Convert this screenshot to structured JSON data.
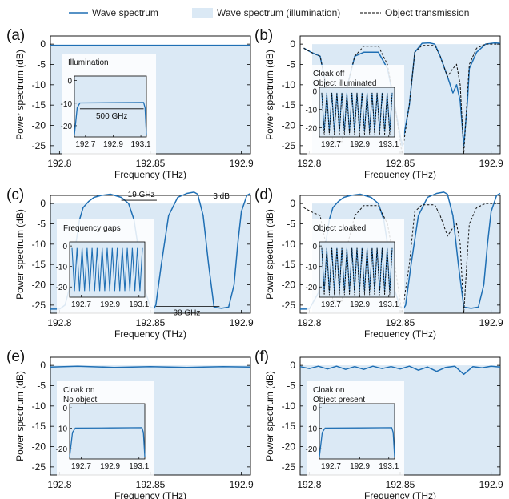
{
  "legend": {
    "items": [
      {
        "label": "Wave spectrum",
        "style": "solid-line",
        "color": "#1f6fb4"
      },
      {
        "label": "Wave spectrum (illumination)",
        "style": "filled-box",
        "color": "#dbe9f5"
      },
      {
        "label": "Object transmission",
        "style": "dashed-line",
        "color": "#000000"
      }
    ]
  },
  "colors": {
    "wave": "#1f6fb4",
    "illumination": "#dbe9f5",
    "object": "#111111"
  },
  "chart_data": [
    {
      "panel": "(a)",
      "type": "line",
      "xlabel": "Frequency (THz)",
      "ylabel": "Power spectrum (dB)",
      "xlim": [
        192.795,
        192.905
      ],
      "ylim": [
        -27,
        2
      ],
      "xticks": [
        "192.8",
        "192.85",
        "192.9"
      ],
      "yticks": [
        0,
        -5,
        -10,
        -15,
        -20,
        -25
      ],
      "illumination_band": [
        192.795,
        192.905
      ],
      "series": [
        {
          "name": "Wave spectrum",
          "x": [
            192.795,
            192.905
          ],
          "y": [
            -0.3,
            -0.3
          ]
        }
      ],
      "annotations": [],
      "inset": {
        "title": "Illumination",
        "annotations": [
          "500 GHz"
        ],
        "xticks": [
          "192.7",
          "192.9",
          "193.1"
        ],
        "yticks": [
          0,
          -10,
          -20
        ],
        "series": {
          "x": [
            192.62,
            192.64,
            192.66,
            192.9,
            193.12,
            193.13,
            193.14
          ],
          "y": [
            -24,
            -12,
            -9.9,
            -9.8,
            -9.7,
            -12,
            -24
          ]
        }
      }
    },
    {
      "panel": "(b)",
      "type": "line",
      "xlabel": "Frequency (THz)",
      "ylabel": "Power spectrum (dB)",
      "xlim": [
        192.795,
        192.905
      ],
      "ylim": [
        -27,
        2
      ],
      "xticks": [
        "192.8",
        "192.85",
        "192.9"
      ],
      "yticks": [
        0,
        -5,
        -10,
        -15,
        -20,
        -25
      ],
      "illumination_band": [
        192.795,
        192.905
      ],
      "series": [
        {
          "name": "Wave spectrum",
          "x": [
            192.797,
            192.801,
            192.806,
            192.81,
            192.813,
            192.818,
            192.82,
            192.825,
            192.83,
            192.838,
            192.843,
            192.847,
            192.851,
            192.855,
            192.858,
            192.862,
            192.866,
            192.869,
            192.872,
            192.876,
            192.879,
            192.881,
            192.883,
            192.885,
            192.887,
            192.888,
            192.892,
            192.897,
            192.902,
            192.905
          ],
          "y": [
            -1,
            -2,
            -3,
            -12,
            -20,
            -20,
            -12,
            -3,
            -2,
            -2,
            -6,
            -15,
            -25,
            -15,
            -2,
            0.2,
            0.3,
            0,
            -3,
            -8,
            -12,
            -10,
            -14,
            -25,
            -14,
            -6,
            -2,
            0,
            0.3,
            0.2
          ]
        },
        {
          "name": "Object transmission",
          "x": [
            192.797,
            192.801,
            192.806,
            192.81,
            192.813,
            192.818,
            192.82,
            192.825,
            192.83,
            192.838,
            192.843,
            192.847,
            192.851,
            192.855,
            192.858,
            192.862,
            192.866,
            192.869,
            192.872,
            192.876,
            192.879,
            192.881,
            192.883,
            192.885,
            192.887,
            192.888,
            192.892,
            192.897,
            192.902,
            192.905
          ],
          "y": [
            -1,
            -2,
            -3,
            -12,
            -24,
            -24,
            -12,
            -3,
            -0.5,
            -0.5,
            -5,
            -15,
            -27,
            -15,
            -2,
            -0.3,
            -0.3,
            -0.3,
            -3,
            -8,
            -6,
            -5,
            -10,
            -27,
            -12,
            -5,
            -1,
            0,
            0,
            0
          ]
        }
      ],
      "annotations": [],
      "inset": {
        "title": "Cloak off",
        "subtitle": "Object illuminated",
        "annotations": [],
        "xticks": [
          "192.7",
          "192.9",
          "193.1"
        ],
        "yticks": [
          0,
          -10,
          -20
        ],
        "series": {
          "comb": true
        }
      }
    },
    {
      "panel": "(c)",
      "type": "line",
      "xlabel": "Frequency (THz)",
      "ylabel": "Power spectrum (dB)",
      "xlim": [
        192.795,
        192.905
      ],
      "ylim": [
        -27,
        2
      ],
      "xticks": [
        "192.8",
        "192.85",
        "192.9"
      ],
      "yticks": [
        0,
        -5,
        -10,
        -15,
        -20,
        -25
      ],
      "illumination_band": [
        192.795,
        192.905
      ],
      "series": [
        {
          "name": "Wave spectrum",
          "x": [
            192.795,
            192.8,
            192.803,
            192.806,
            192.809,
            192.811,
            192.813,
            192.816,
            192.819,
            192.823,
            192.828,
            192.834,
            192.838,
            192.841,
            192.843,
            192.846,
            192.85,
            192.852,
            192.853,
            192.856,
            192.86,
            192.865,
            192.87,
            192.874,
            192.876,
            192.879,
            192.882,
            192.885,
            192.889,
            192.893,
            192.896,
            192.898,
            192.9,
            192.903,
            192.905
          ],
          "y": [
            -26,
            -26,
            -25,
            -20,
            -10,
            -4,
            -1,
            0.5,
            1.5,
            2,
            2.3,
            1.5,
            0,
            -4,
            -10,
            -20,
            -25.5,
            -25.8,
            -25,
            -15,
            -3,
            1.5,
            2.5,
            2.8,
            2.3,
            -3,
            -15,
            -25.5,
            -25.8,
            -25.5,
            -20,
            -10,
            -2,
            2,
            2.5
          ]
        }
      ],
      "annotations": [
        "19 GHz",
        "38 GHz",
        "3 dB"
      ],
      "inset": {
        "title": "Frequency gaps",
        "annotations": [],
        "xticks": [
          "192.7",
          "192.9",
          "193.1"
        ],
        "yticks": [
          0,
          -10,
          -20
        ],
        "series": {
          "comb": true
        }
      }
    },
    {
      "panel": "(d)",
      "type": "line",
      "xlabel": "Frequency (THz)",
      "ylabel": "Power spectrum (dB)",
      "xlim": [
        192.795,
        192.905
      ],
      "ylim": [
        -27,
        2
      ],
      "xticks": [
        "192.8",
        "192.85",
        "192.9"
      ],
      "yticks": [
        0,
        -5,
        -10,
        -15,
        -20,
        -25
      ],
      "illumination_band": [
        192.795,
        192.905
      ],
      "series": [
        {
          "name": "Wave spectrum",
          "x": [
            192.795,
            192.8,
            192.805,
            192.809,
            192.811,
            192.813,
            192.816,
            192.819,
            192.823,
            192.828,
            192.834,
            192.838,
            192.841,
            192.843,
            192.846,
            192.85,
            192.852,
            192.853,
            192.856,
            192.86,
            192.865,
            192.87,
            192.874,
            192.876,
            192.879,
            192.882,
            192.885,
            192.889,
            192.893,
            192.896,
            192.898,
            192.9,
            192.903,
            192.905
          ],
          "y": [
            -26,
            -26,
            -22,
            -10,
            -4,
            -1,
            0.5,
            1.5,
            2,
            2.3,
            1.5,
            0,
            -4,
            -10,
            -20,
            -25.5,
            -25.8,
            -25,
            -15,
            -3,
            1.5,
            2.5,
            2.8,
            2.3,
            -3,
            -15,
            -25.5,
            -25.8,
            -25.5,
            -20,
            -10,
            -2,
            2,
            2.5
          ]
        },
        {
          "name": "Object transmission",
          "x": [
            192.797,
            192.801,
            192.806,
            192.81,
            192.813,
            192.818,
            192.82,
            192.825,
            192.83,
            192.838,
            192.843,
            192.847,
            192.851,
            192.855,
            192.858,
            192.862,
            192.866,
            192.869,
            192.872,
            192.876,
            192.879,
            192.881,
            192.883,
            192.885,
            192.887,
            192.888,
            192.892,
            192.897,
            192.902,
            192.905
          ],
          "y": [
            -1,
            -2,
            -3,
            -12,
            -24,
            -24,
            -12,
            -3,
            -0.5,
            -0.5,
            -5,
            -15,
            -27,
            -15,
            -2,
            -0.3,
            -0.3,
            -0.3,
            -3,
            -8,
            -6,
            -5,
            -10,
            -27,
            -12,
            -5,
            -1,
            0,
            0,
            0
          ]
        }
      ],
      "annotations": [],
      "inset": {
        "title": "Object cloaked",
        "annotations": [],
        "xticks": [
          "192.7",
          "192.9",
          "193.1"
        ],
        "yticks": [
          0,
          -10,
          -20
        ],
        "series": {
          "comb": true
        }
      }
    },
    {
      "panel": "(e)",
      "type": "line",
      "xlabel": "Frequency (THz)",
      "ylabel": "Power spectrum (dB)",
      "xlim": [
        192.795,
        192.905
      ],
      "ylim": [
        -27,
        2
      ],
      "xticks": [
        "192.8",
        "192.85",
        "192.9"
      ],
      "yticks": [
        0,
        -5,
        -10,
        -15,
        -20,
        -25
      ],
      "illumination_band": [
        192.795,
        192.905
      ],
      "series": [
        {
          "name": "Wave spectrum",
          "x": [
            192.795,
            192.81,
            192.83,
            192.85,
            192.87,
            192.89,
            192.905
          ],
          "y": [
            -0.4,
            -0.2,
            -0.5,
            -0.3,
            -0.5,
            -0.3,
            -0.4
          ]
        }
      ],
      "annotations": [],
      "inset": {
        "title": "Cloak on",
        "subtitle": "No object",
        "annotations": [],
        "xticks": [
          "192.7",
          "192.9",
          "193.1"
        ],
        "yticks": [
          0,
          -10,
          -20
        ],
        "series": {
          "x": [
            192.62,
            192.64,
            192.66,
            192.9,
            193.12,
            193.13,
            193.14
          ],
          "y": [
            -24,
            -12,
            -9.9,
            -9.8,
            -9.7,
            -12,
            -24
          ]
        }
      }
    },
    {
      "panel": "(f)",
      "type": "line",
      "xlabel": "Frequency (THz)",
      "ylabel": "Power spectrum (dB)",
      "xlim": [
        192.795,
        192.905
      ],
      "ylim": [
        -27,
        2
      ],
      "xticks": [
        "192.8",
        "192.85",
        "192.9"
      ],
      "yticks": [
        0,
        -5,
        -10,
        -15,
        -20,
        -25
      ],
      "illumination_band": [
        192.795,
        192.905
      ],
      "series": [
        {
          "name": "Wave spectrum",
          "x": [
            192.795,
            192.8,
            192.805,
            192.81,
            192.815,
            192.82,
            192.825,
            192.83,
            192.835,
            192.84,
            192.845,
            192.85,
            192.855,
            192.86,
            192.865,
            192.87,
            192.875,
            192.88,
            192.885,
            192.89,
            192.895,
            192.9,
            192.905
          ],
          "y": [
            -0.3,
            -0.8,
            -0.2,
            -0.9,
            -0.2,
            -1.0,
            -0.3,
            -1.0,
            -0.2,
            -0.8,
            -0.3,
            -0.9,
            -0.2,
            -1.2,
            -0.4,
            -1.5,
            -0.5,
            -0.2,
            -2.2,
            -0.3,
            -0.6,
            -0.2,
            -0.4
          ]
        }
      ],
      "annotations": [],
      "inset": {
        "title": "Cloak on",
        "subtitle": "Object present",
        "annotations": [],
        "xticks": [
          "192.7",
          "192.9",
          "193.1"
        ],
        "yticks": [
          0,
          -10,
          -20
        ],
        "series": {
          "x": [
            192.62,
            192.64,
            192.66,
            192.9,
            193.12,
            193.13,
            193.14
          ],
          "y": [
            -24,
            -12,
            -9.9,
            -9.8,
            -9.7,
            -12,
            -24
          ]
        }
      }
    }
  ]
}
